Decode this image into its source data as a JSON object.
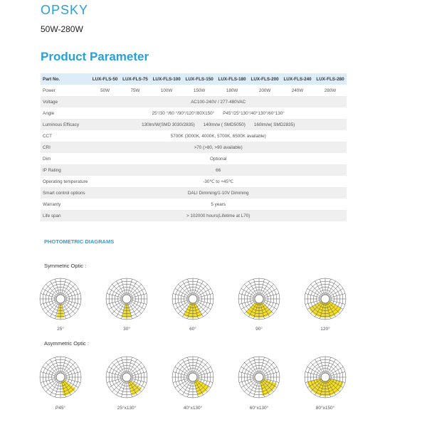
{
  "header": {
    "brand": "OPSKY",
    "range": "50W-280W",
    "title": "Product Parameter"
  },
  "table": {
    "part_label": "Part No.",
    "parts": [
      "LUX-FLS-50",
      "LUX-FLS-75",
      "LUX-FLS-100",
      "LUX-FLS-150",
      "LUX-FLS-180",
      "LUX-FLS-200",
      "LUX-FLS-240",
      "LUX-FLS-280"
    ],
    "power_label": "Power",
    "powers": [
      "50W",
      "75W",
      "100W",
      "150W",
      "180W",
      "200W",
      "240W",
      "280W"
    ],
    "rows": [
      {
        "label": "Voltage",
        "values": [
          "AC100-240V / 277-480VAC"
        ]
      },
      {
        "label": "Angle",
        "values": [
          "25°/30 °/60 °/90°/120°/80X150°",
          "P45°/25°130°/40°130°/60°130°"
        ]
      },
      {
        "label": "Luminous Efficacy",
        "values": [
          "130lm/W(SMD 3030/2835)",
          "140lm/w ( SMD5050)",
          "160lm/w( SMD2835)"
        ]
      },
      {
        "label": "CCT",
        "values": [
          "5700K (3000K, 4000K, 5700K, 6500K available)"
        ]
      },
      {
        "label": "CRI",
        "values": [
          ">70 (>80, >90 available)"
        ]
      },
      {
        "label": "Dim",
        "values": [
          "Optional"
        ]
      },
      {
        "label": "IP Rating",
        "values": [
          "66"
        ]
      },
      {
        "label": "Operating temperature",
        "values": [
          "-30℃ to +45℃"
        ]
      },
      {
        "label": "Smart control options",
        "values": [
          "DALI Dimming/1-10V Dimming"
        ]
      },
      {
        "label": "Warranty",
        "values": [
          "5 years"
        ]
      },
      {
        "label": "Life span",
        "values": [
          "> 102000 hours(Lifetime at L70)"
        ]
      }
    ]
  },
  "photometric": {
    "title": "PHOTOMETRIC DIAGRAMS",
    "symmetric": {
      "label": "Symmetric Optic :",
      "diagrams": [
        "25°",
        "30°",
        "60°",
        "90°",
        "120°"
      ]
    },
    "asymmetric": {
      "label": "Asymmetric Optic :",
      "diagrams": [
        "P45°",
        "25°x130°",
        "40°x130°",
        "60°x130°",
        "80°x150°"
      ]
    }
  },
  "colors": {
    "accent": "#2aa0d8",
    "beam": "#f2d800"
  }
}
